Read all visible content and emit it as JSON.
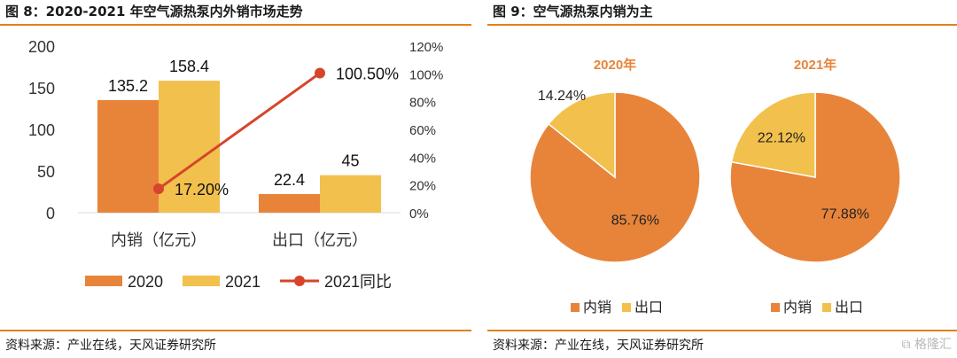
{
  "colors": {
    "c2020": "#e8843a",
    "c2021": "#f2c04c",
    "line": "#d6452b",
    "rule": "#e0821f",
    "pieTitle": "#e8843a"
  },
  "figure8": {
    "title": "图 8：2020-2021 年空气源热泵内外销市场走势",
    "source": "资料来源：产业在线，天风证券研究所",
    "chart_data": {
      "type": "bar",
      "categories": [
        "内销（亿元）",
        "出口（亿元）"
      ],
      "series": [
        {
          "name": "2020",
          "type": "bar",
          "values": [
            135.2,
            22.4
          ],
          "labels": [
            "135.2",
            "22.4"
          ]
        },
        {
          "name": "2021",
          "type": "bar",
          "values": [
            158.4,
            45
          ],
          "labels": [
            "158.4",
            "45"
          ]
        },
        {
          "name": "2021同比",
          "type": "line",
          "axis": "right",
          "values": [
            17.2,
            100.5
          ],
          "labels": [
            "17.20%",
            "100.50%"
          ]
        }
      ],
      "ylim": [
        0,
        200
      ],
      "yticks": [
        "0",
        "50",
        "100",
        "150",
        "200"
      ],
      "ylim_right": [
        0,
        120
      ],
      "yticks_right": [
        "0%",
        "20%",
        "40%",
        "60%",
        "80%",
        "100%",
        "120%"
      ],
      "legend_position": "bottom",
      "grid": false
    }
  },
  "figure9": {
    "title": "图 9：空气源热泵内销为主",
    "source": "资料来源：产业在线，天风证券研究所",
    "chart_data": [
      {
        "type": "pie",
        "title": "2020年",
        "slices": [
          {
            "name": "内销",
            "value": 85.76,
            "label": "85.76%"
          },
          {
            "name": "出口",
            "value": 14.24,
            "label": "14.24%"
          }
        ]
      },
      {
        "type": "pie",
        "title": "2021年",
        "slices": [
          {
            "name": "内销",
            "value": 77.88,
            "label": "77.88%"
          },
          {
            "name": "出口",
            "value": 22.12,
            "label": "22.12%"
          }
        ]
      }
    ]
  },
  "watermark": {
    "text": "格隆汇"
  }
}
